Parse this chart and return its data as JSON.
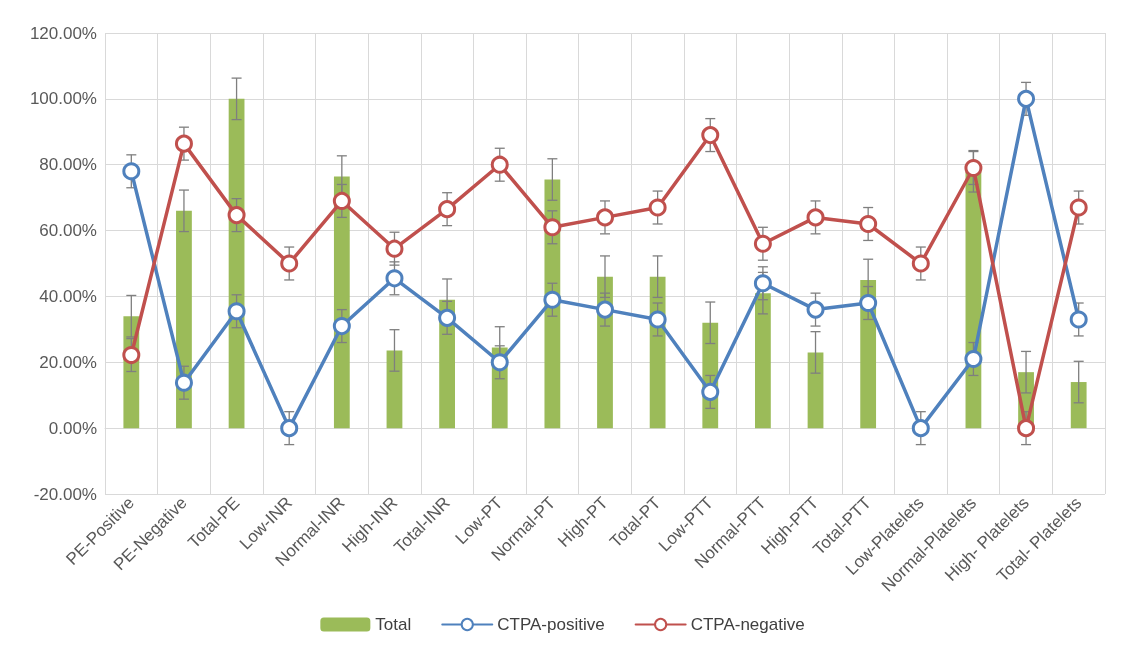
{
  "chart_data": {
    "type": "bar",
    "categories": [
      "PE-Positive",
      "PE-Negative",
      "Total-PE",
      "Low-INR",
      "Normal-INR",
      "High-INR",
      "Total-INR",
      "Low-PT",
      "Normal-PT",
      "High-PT",
      "Total-PT",
      "Low-PTT",
      "Normal-PTT",
      "High-PTT",
      "Total-PTT",
      "Low-Platelets",
      "Normal-Platelets",
      "High- Platelets",
      "Total- Platelets"
    ],
    "series": [
      {
        "name": "Total",
        "color": "#9bbb59",
        "values": [
          34,
          66,
          100,
          0,
          76.4,
          23.6,
          39,
          24.5,
          75.5,
          46,
          46,
          32,
          41,
          23,
          45,
          0,
          78,
          17,
          14
        ],
        "errors": [
          6.3,
          6.3,
          6.3,
          null,
          6.3,
          6.3,
          6.3,
          6.3,
          6.3,
          6.3,
          6.3,
          6.3,
          6.3,
          6.3,
          6.3,
          null,
          6.3,
          6.3,
          6.3
        ]
      },
      {
        "name": "CTPA-positive",
        "type": "line",
        "color": "#4f81bd",
        "values": [
          78,
          13.8,
          35.5,
          0,
          31,
          45.5,
          33.5,
          20,
          39,
          36,
          33,
          11,
          44,
          36,
          38,
          0,
          21,
          100,
          33
        ],
        "errors": [
          5,
          5,
          5,
          5,
          5,
          5,
          5,
          5,
          5,
          5,
          5,
          5,
          5,
          5,
          5,
          5,
          5,
          5,
          5
        ]
      },
      {
        "name": "CTPA-negative",
        "type": "line",
        "color": "#c0504d",
        "values": [
          22.2,
          86.4,
          64.7,
          50,
          69,
          54.5,
          66.5,
          80,
          61,
          64,
          67,
          89,
          56,
          64,
          62,
          50,
          79,
          0,
          67
        ],
        "errors": [
          5,
          5,
          5,
          5,
          5,
          5,
          5,
          5,
          5,
          5,
          5,
          5,
          5,
          5,
          5,
          5,
          5,
          5,
          5
        ]
      }
    ],
    "ylim": [
      -20,
      120
    ],
    "yticks": [
      {
        "value": -20,
        "label": "-20.00%"
      },
      {
        "value": 0,
        "label": "0.00%"
      },
      {
        "value": 20,
        "label": "20.00%"
      },
      {
        "value": 40,
        "label": "40.00%"
      },
      {
        "value": 60,
        "label": "60.00%"
      },
      {
        "value": 80,
        "label": "80.00%"
      },
      {
        "value": 100,
        "label": "100.00%"
      },
      {
        "value": 120,
        "label": "120.00%"
      }
    ],
    "grid": true,
    "legend": "bottom",
    "marker": "circle",
    "line_style": "solid"
  }
}
